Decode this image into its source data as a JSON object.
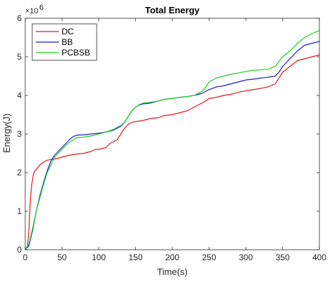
{
  "chart_data": {
    "type": "line",
    "title": "Total Energy",
    "xlabel": "Time(s)",
    "ylabel": "Energy(J)",
    "y_exponent_base": "×10",
    "y_exponent_power": "6",
    "xlim": [
      0,
      400
    ],
    "ylim": [
      0,
      6
    ],
    "x_ticks": [
      0,
      50,
      100,
      150,
      200,
      250,
      300,
      350,
      400
    ],
    "y_ticks": [
      0,
      1,
      2,
      3,
      4,
      5,
      6
    ],
    "x_tick_labels": [
      "0",
      "50",
      "100",
      "150",
      "200",
      "250",
      "300",
      "350",
      "400"
    ],
    "y_tick_labels": [
      "0",
      "1",
      "2",
      "3",
      "4",
      "5",
      "6"
    ],
    "grid": false,
    "legend_position": "top-left",
    "series": [
      {
        "name": "DC",
        "color": "#e8141a",
        "points": [
          [
            0,
            0
          ],
          [
            3,
            0.1
          ],
          [
            5,
            0.5
          ],
          [
            7,
            1.3
          ],
          [
            9,
            1.7
          ],
          [
            11,
            1.95
          ],
          [
            13,
            2.05
          ],
          [
            16,
            2.1
          ],
          [
            20,
            2.2
          ],
          [
            25,
            2.27
          ],
          [
            30,
            2.32
          ],
          [
            35,
            2.34
          ],
          [
            40,
            2.35
          ],
          [
            50,
            2.4
          ],
          [
            60,
            2.45
          ],
          [
            70,
            2.48
          ],
          [
            80,
            2.5
          ],
          [
            90,
            2.55
          ],
          [
            95,
            2.6
          ],
          [
            100,
            2.6
          ],
          [
            110,
            2.65
          ],
          [
            115,
            2.75
          ],
          [
            120,
            2.8
          ],
          [
            125,
            2.85
          ],
          [
            130,
            3.0
          ],
          [
            135,
            3.15
          ],
          [
            140,
            3.25
          ],
          [
            145,
            3.3
          ],
          [
            150,
            3.32
          ],
          [
            160,
            3.35
          ],
          [
            170,
            3.4
          ],
          [
            180,
            3.42
          ],
          [
            190,
            3.48
          ],
          [
            200,
            3.5
          ],
          [
            210,
            3.55
          ],
          [
            220,
            3.6
          ],
          [
            230,
            3.7
          ],
          [
            240,
            3.8
          ],
          [
            245,
            3.85
          ],
          [
            250,
            3.92
          ],
          [
            260,
            3.95
          ],
          [
            270,
            4.0
          ],
          [
            280,
            4.03
          ],
          [
            290,
            4.08
          ],
          [
            300,
            4.12
          ],
          [
            310,
            4.15
          ],
          [
            320,
            4.18
          ],
          [
            330,
            4.22
          ],
          [
            340,
            4.3
          ],
          [
            345,
            4.45
          ],
          [
            350,
            4.6
          ],
          [
            360,
            4.75
          ],
          [
            370,
            4.9
          ],
          [
            380,
            4.95
          ],
          [
            390,
            5.0
          ],
          [
            400,
            5.05
          ]
        ]
      },
      {
        "name": "BB",
        "color": "#1a1adf",
        "points": [
          [
            0,
            0
          ],
          [
            5,
            0.1
          ],
          [
            10,
            0.5
          ],
          [
            15,
            1.0
          ],
          [
            20,
            1.4
          ],
          [
            25,
            1.75
          ],
          [
            30,
            2.05
          ],
          [
            35,
            2.3
          ],
          [
            40,
            2.45
          ],
          [
            45,
            2.55
          ],
          [
            50,
            2.65
          ],
          [
            55,
            2.75
          ],
          [
            60,
            2.85
          ],
          [
            65,
            2.93
          ],
          [
            70,
            2.97
          ],
          [
            80,
            2.98
          ],
          [
            90,
            3.0
          ],
          [
            100,
            3.02
          ],
          [
            110,
            3.05
          ],
          [
            120,
            3.1
          ],
          [
            130,
            3.2
          ],
          [
            135,
            3.3
          ],
          [
            140,
            3.45
          ],
          [
            145,
            3.6
          ],
          [
            150,
            3.7
          ],
          [
            155,
            3.75
          ],
          [
            160,
            3.78
          ],
          [
            170,
            3.8
          ],
          [
            180,
            3.85
          ],
          [
            190,
            3.9
          ],
          [
            200,
            3.92
          ],
          [
            210,
            3.95
          ],
          [
            220,
            3.97
          ],
          [
            230,
            4.0
          ],
          [
            240,
            4.05
          ],
          [
            245,
            4.1
          ],
          [
            250,
            4.15
          ],
          [
            260,
            4.22
          ],
          [
            270,
            4.25
          ],
          [
            280,
            4.3
          ],
          [
            290,
            4.35
          ],
          [
            300,
            4.4
          ],
          [
            310,
            4.42
          ],
          [
            320,
            4.45
          ],
          [
            330,
            4.47
          ],
          [
            340,
            4.5
          ],
          [
            345,
            4.6
          ],
          [
            350,
            4.75
          ],
          [
            360,
            4.95
          ],
          [
            370,
            5.15
          ],
          [
            380,
            5.3
          ],
          [
            390,
            5.35
          ],
          [
            400,
            5.4
          ]
        ]
      },
      {
        "name": "PCBSB",
        "color": "#1ad01a",
        "points": [
          [
            0,
            0
          ],
          [
            5,
            0.15
          ],
          [
            10,
            0.55
          ],
          [
            15,
            1.0
          ],
          [
            20,
            1.35
          ],
          [
            25,
            1.7
          ],
          [
            30,
            2.0
          ],
          [
            35,
            2.2
          ],
          [
            40,
            2.4
          ],
          [
            45,
            2.5
          ],
          [
            50,
            2.6
          ],
          [
            55,
            2.7
          ],
          [
            60,
            2.78
          ],
          [
            65,
            2.85
          ],
          [
            70,
            2.9
          ],
          [
            80,
            2.92
          ],
          [
            90,
            2.95
          ],
          [
            100,
            3.0
          ],
          [
            110,
            3.05
          ],
          [
            120,
            3.12
          ],
          [
            130,
            3.22
          ],
          [
            135,
            3.3
          ],
          [
            140,
            3.45
          ],
          [
            145,
            3.6
          ],
          [
            150,
            3.7
          ],
          [
            155,
            3.76
          ],
          [
            160,
            3.8
          ],
          [
            170,
            3.82
          ],
          [
            180,
            3.85
          ],
          [
            190,
            3.9
          ],
          [
            200,
            3.92
          ],
          [
            210,
            3.95
          ],
          [
            220,
            3.97
          ],
          [
            230,
            4.0
          ],
          [
            240,
            4.1
          ],
          [
            245,
            4.2
          ],
          [
            250,
            4.35
          ],
          [
            255,
            4.4
          ],
          [
            260,
            4.45
          ],
          [
            270,
            4.5
          ],
          [
            280,
            4.55
          ],
          [
            290,
            4.58
          ],
          [
            300,
            4.62
          ],
          [
            310,
            4.65
          ],
          [
            320,
            4.66
          ],
          [
            330,
            4.68
          ],
          [
            340,
            4.75
          ],
          [
            345,
            4.88
          ],
          [
            350,
            5.0
          ],
          [
            360,
            5.15
          ],
          [
            370,
            5.35
          ],
          [
            380,
            5.5
          ],
          [
            390,
            5.6
          ],
          [
            400,
            5.68
          ]
        ]
      }
    ]
  }
}
